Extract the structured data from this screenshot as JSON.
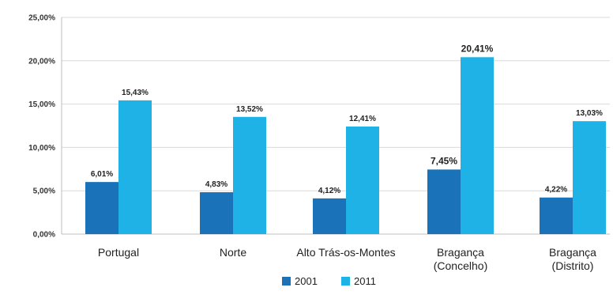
{
  "chart_data": {
    "type": "bar",
    "categories": [
      [
        "Portugal"
      ],
      [
        "Norte"
      ],
      [
        "Alto Trás-os-Montes"
      ],
      [
        "Bragança",
        "(Concelho)"
      ],
      [
        "Bragança",
        "(Distrito)"
      ]
    ],
    "series": [
      {
        "name": "2001",
        "color": "#1a73b8",
        "values": [
          6.01,
          4.83,
          4.12,
          7.45,
          4.22
        ],
        "labels": [
          "6,01%",
          "4,83%",
          "4,12%",
          "7,45%",
          "4,22%"
        ]
      },
      {
        "name": "2011",
        "color": "#1fb2e6",
        "values": [
          15.43,
          13.52,
          12.41,
          20.41,
          13.03
        ],
        "labels": [
          "15,43%",
          "13,52%",
          "12,41%",
          "20,41%",
          "13,03%"
        ]
      }
    ],
    "emphasized_category": 3,
    "ylim": [
      0,
      25
    ],
    "yticks": [
      0,
      5,
      10,
      15,
      20,
      25
    ],
    "ytick_labels": [
      "0,00%",
      "5,00%",
      "10,00%",
      "15,00%",
      "20,00%",
      "25,00%"
    ],
    "grid": true,
    "legend_position": "bottom"
  }
}
